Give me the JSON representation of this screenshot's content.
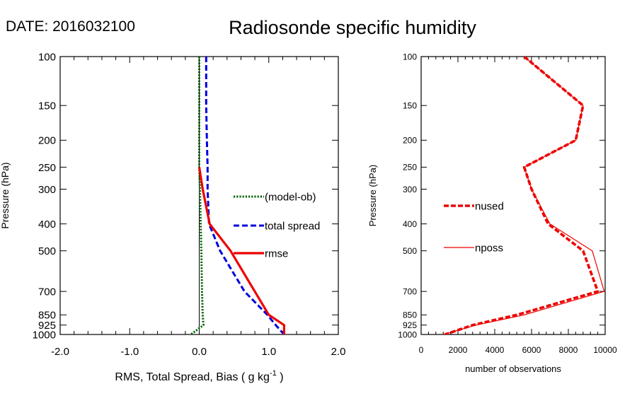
{
  "header": {
    "date_label": "DATE: 2016032100",
    "title": "Radiosonde specific humidity"
  },
  "chart_data": [
    {
      "type": "line",
      "panel": "left",
      "ylabel": "Pressure (hPa)",
      "xlabel_main": "RMS, Total Spread, Bias ( g kg",
      "xlabel_sup": "-1",
      "xlabel_end": " )",
      "y_scale": "log",
      "y_reversed": true,
      "ylim": [
        100,
        1000
      ],
      "xlim": [
        -2.0,
        2.0
      ],
      "y_ticks": [
        100,
        150,
        200,
        250,
        300,
        400,
        500,
        700,
        850,
        925,
        1000
      ],
      "y_tick_labels": [
        "100",
        "150",
        "200",
        "250",
        "300",
        "400",
        "500",
        "700",
        "850",
        "925",
        "1000"
      ],
      "x_ticks": [
        -2.0,
        -1.0,
        0.0,
        1.0,
        2.0
      ],
      "x_tick_labels": [
        "-2.0",
        "-1.0",
        "0.0",
        "1.0",
        "2.0"
      ],
      "reference_line_x": 0.0,
      "series": [
        {
          "name": "(model-ob)",
          "color": "#006400",
          "style": "dotted",
          "points": [
            [
              0.0,
              100
            ],
            [
              0.0,
              150
            ],
            [
              0.0,
              200
            ],
            [
              0.0,
              250
            ],
            [
              0.01,
              300
            ],
            [
              0.02,
              400
            ],
            [
              0.03,
              500
            ],
            [
              0.04,
              700
            ],
            [
              0.05,
              850
            ],
            [
              0.06,
              925
            ],
            [
              -0.12,
              1000
            ]
          ]
        },
        {
          "name": "total spread",
          "color": "#0000dd",
          "style": "dashed",
          "points": [
            [
              0.1,
              100
            ],
            [
              0.1,
              150
            ],
            [
              0.11,
              200
            ],
            [
              0.12,
              250
            ],
            [
              0.12,
              300
            ],
            [
              0.14,
              400
            ],
            [
              0.3,
              500
            ],
            [
              0.65,
              700
            ],
            [
              0.98,
              850
            ],
            [
              1.1,
              925
            ],
            [
              1.22,
              1000
            ]
          ]
        },
        {
          "name": "rmse",
          "color": "#ee0000",
          "style": "solid",
          "points": [
            [
              0.0,
              250
            ],
            [
              0.05,
              300
            ],
            [
              0.15,
              400
            ],
            [
              0.45,
              500
            ],
            [
              1.0,
              850
            ],
            [
              1.22,
              925
            ],
            [
              1.22,
              1000
            ]
          ]
        }
      ],
      "legend": [
        "(model-ob)",
        "total spread",
        "rmse"
      ]
    },
    {
      "type": "line",
      "panel": "right",
      "ylabel": "Pressure (hPa)",
      "xlabel": "number of observations",
      "y_scale": "log",
      "y_reversed": true,
      "ylim": [
        100,
        1000
      ],
      "xlim": [
        0,
        10000
      ],
      "y_ticks": [
        100,
        150,
        200,
        250,
        300,
        400,
        500,
        700,
        850,
        925,
        1000
      ],
      "y_tick_labels": [
        "100",
        "150",
        "200",
        "250",
        "300",
        "400",
        "500",
        "700",
        "850",
        "925",
        "1000"
      ],
      "x_ticks": [
        0,
        2000,
        4000,
        6000,
        8000,
        10000
      ],
      "x_tick_labels": [
        "0",
        "2000",
        "4000",
        "6000",
        "8000",
        "10000"
      ],
      "series": [
        {
          "name": "nused",
          "color": "#ee0000",
          "style": "thick-dashed",
          "points": [
            [
              5600,
              100
            ],
            [
              8800,
              150
            ],
            [
              8400,
              200
            ],
            [
              5600,
              250
            ],
            [
              6000,
              300
            ],
            [
              6900,
              400
            ],
            [
              8800,
              500
            ],
            [
              9600,
              700
            ],
            [
              5200,
              850
            ],
            [
              2800,
              925
            ],
            [
              1300,
              1000
            ]
          ]
        },
        {
          "name": "nposs",
          "color": "#ee0000",
          "style": "thin",
          "points": [
            [
              5600,
              100
            ],
            [
              8800,
              150
            ],
            [
              8400,
              200
            ],
            [
              5600,
              250
            ],
            [
              6000,
              300
            ],
            [
              7000,
              400
            ],
            [
              9300,
              500
            ],
            [
              9950,
              700
            ],
            [
              5600,
              850
            ],
            [
              3000,
              925
            ],
            [
              1200,
              1000
            ]
          ]
        }
      ],
      "legend": [
        "nused",
        "nposs"
      ]
    }
  ]
}
